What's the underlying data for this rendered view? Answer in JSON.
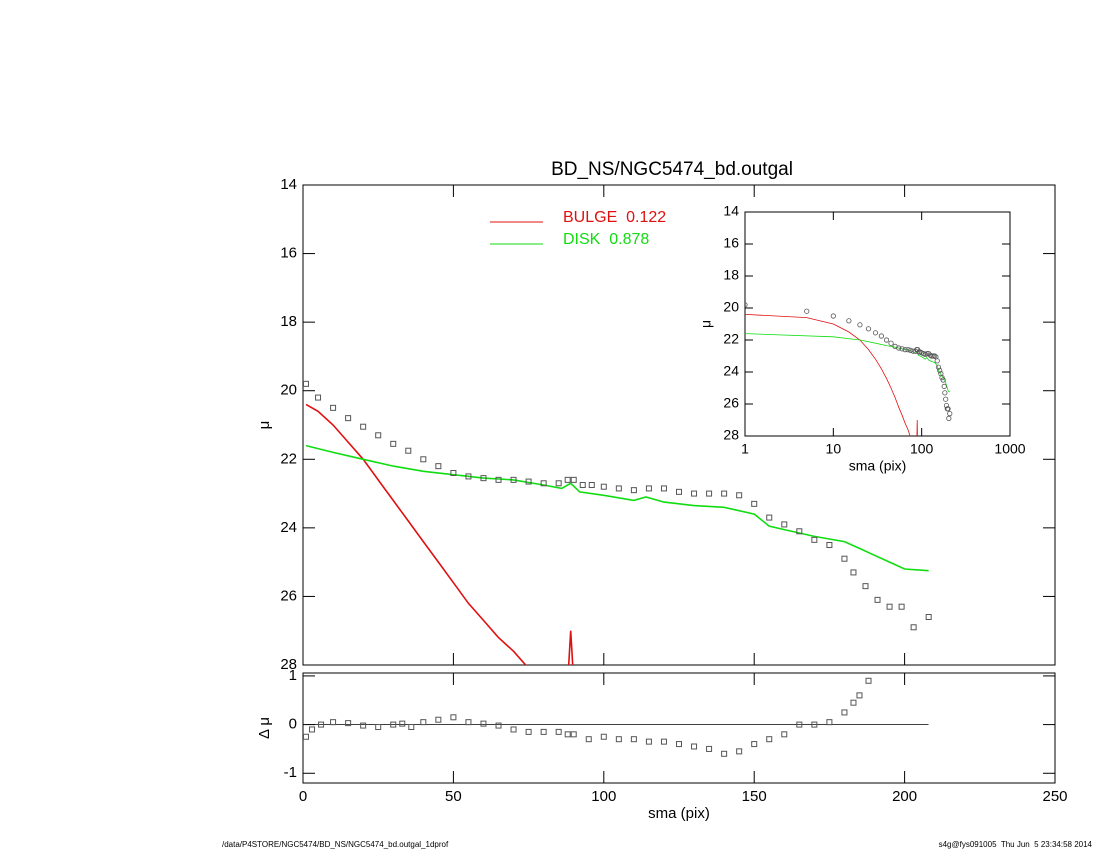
{
  "footer_left": "/data/P4STORE/NGC5474/BD_NS/NGC5474_bd.outgal_1dprof",
  "footer_right": "s4g@fys091005  Thu Jun  5 23:34:58 2014",
  "chart_data": [
    {
      "type": "line",
      "title": "BD_NS/NGC5474_bd.outgal",
      "ylabel": "μ",
      "xlim": [
        0,
        250
      ],
      "xticks": [
        0,
        50,
        100,
        150,
        200,
        250
      ],
      "ylim": [
        14,
        28
      ],
      "yticks": [
        14,
        16,
        18,
        20,
        22,
        24,
        26,
        28
      ],
      "invert_y": true,
      "observed": {
        "marker": "square",
        "color": "#555555",
        "x": [
          1,
          5,
          10,
          15,
          20,
          25,
          30,
          35,
          40,
          45,
          50,
          55,
          60,
          65,
          70,
          75,
          80,
          85,
          88,
          90,
          93,
          96,
          100,
          105,
          110,
          115,
          120,
          125,
          130,
          135,
          140,
          145,
          150,
          155,
          160,
          165,
          170,
          175,
          180,
          183,
          187,
          191,
          195,
          199,
          203,
          208
        ],
        "values": [
          19.8,
          20.2,
          20.5,
          20.8,
          21.05,
          21.3,
          21.55,
          21.75,
          22.0,
          22.2,
          22.4,
          22.5,
          22.55,
          22.6,
          22.6,
          22.65,
          22.7,
          22.7,
          22.6,
          22.6,
          22.75,
          22.75,
          22.8,
          22.85,
          22.9,
          22.85,
          22.85,
          22.95,
          23.0,
          23.0,
          23.0,
          23.05,
          23.3,
          23.7,
          23.9,
          24.1,
          24.35,
          24.5,
          24.9,
          25.3,
          25.7,
          26.1,
          26.3,
          26.3,
          26.9,
          26.6
        ]
      },
      "series": [
        {
          "name": "BULGE  0.122",
          "color": "#e01010",
          "x": [
            1,
            5,
            10,
            15,
            20,
            25,
            30,
            35,
            40,
            45,
            50,
            55,
            60,
            65,
            70,
            75,
            80,
            88,
            89,
            90
          ],
          "values": [
            20.4,
            20.6,
            21.0,
            21.5,
            22.0,
            22.6,
            23.2,
            23.8,
            24.4,
            25.0,
            25.6,
            26.2,
            26.7,
            27.2,
            27.6,
            28.1,
            null,
            28.5,
            27.0,
            28.5
          ]
        },
        {
          "name": "DISK  0.878",
          "color": "#10dd10",
          "x": [
            1,
            10,
            20,
            30,
            40,
            50,
            60,
            70,
            80,
            86,
            89,
            92,
            100,
            110,
            114,
            120,
            130,
            140,
            150,
            155,
            160,
            170,
            180,
            185,
            190,
            195,
            200,
            208
          ],
          "values": [
            21.6,
            21.8,
            22.0,
            22.2,
            22.35,
            22.45,
            22.55,
            22.6,
            22.75,
            22.85,
            22.7,
            22.95,
            23.05,
            23.2,
            23.1,
            23.25,
            23.35,
            23.4,
            23.6,
            23.95,
            24.05,
            24.25,
            24.4,
            24.6,
            24.8,
            25.0,
            25.2,
            25.25
          ]
        }
      ]
    },
    {
      "type": "line",
      "log_x": true,
      "xlabel": "sma (pix)",
      "ylabel": "μ",
      "xlim": [
        1,
        1000
      ],
      "xticks": [
        1,
        10,
        100,
        1000
      ],
      "ylim": [
        14,
        28
      ],
      "yticks": [
        14,
        16,
        18,
        20,
        22,
        24,
        26,
        28
      ],
      "invert_y": true
    },
    {
      "type": "scatter",
      "xlabel": "sma (pix)",
      "ylabel": "Δ μ",
      "xlim": [
        0,
        250
      ],
      "xticks": [
        0,
        50,
        100,
        150,
        200,
        250
      ],
      "ylim": [
        -1.2,
        1.06
      ],
      "yticks": [
        -1,
        0,
        1
      ],
      "color": "#555555",
      "x": [
        1,
        3,
        6,
        10,
        15,
        20,
        25,
        30,
        33,
        36,
        40,
        45,
        50,
        55,
        60,
        65,
        70,
        75,
        80,
        85,
        88,
        90,
        95,
        100,
        105,
        110,
        115,
        120,
        125,
        130,
        135,
        140,
        145,
        150,
        155,
        160,
        165,
        170,
        175,
        180,
        183,
        185,
        188
      ],
      "values": [
        -0.25,
        -0.1,
        0.0,
        0.05,
        0.03,
        -0.02,
        -0.05,
        0.0,
        0.02,
        -0.05,
        0.05,
        0.1,
        0.15,
        0.05,
        0.02,
        -0.02,
        -0.1,
        -0.15,
        -0.15,
        -0.15,
        -0.2,
        -0.2,
        -0.3,
        -0.25,
        -0.3,
        -0.3,
        -0.35,
        -0.35,
        -0.4,
        -0.45,
        -0.5,
        -0.6,
        -0.55,
        -0.4,
        -0.3,
        -0.2,
        0.0,
        0.0,
        0.05,
        0.25,
        0.45,
        0.6,
        0.9
      ]
    }
  ]
}
